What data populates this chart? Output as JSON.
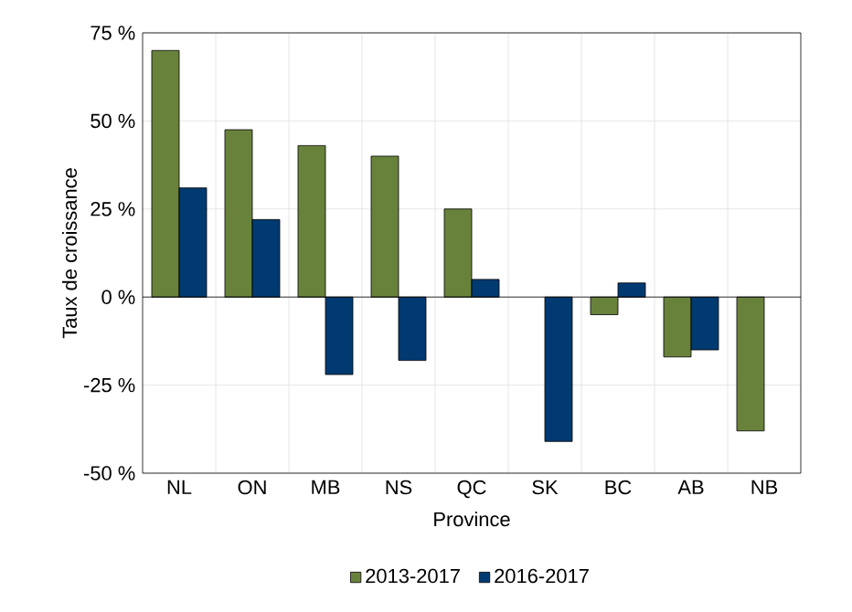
{
  "chart_data": {
    "type": "bar",
    "categories": [
      "NL",
      "ON",
      "MB",
      "NS",
      "QC",
      "SK",
      "BC",
      "AB",
      "NB"
    ],
    "series": [
      {
        "name": "2013-2017",
        "color": "#68823c",
        "values": [
          70,
          47.5,
          43,
          40,
          25,
          null,
          -5,
          -17,
          -38
        ]
      },
      {
        "name": "2016-2017",
        "color": "#003a70",
        "values": [
          31,
          22,
          -22,
          -18,
          5,
          -41,
          4,
          -15,
          null
        ]
      }
    ],
    "xlabel": "Province",
    "ylabel": "Taux de croissance",
    "ylim": [
      -50,
      75
    ],
    "yticks": [
      {
        "value": -50,
        "label": "-50 %"
      },
      {
        "value": -25,
        "label": "-25 %"
      },
      {
        "value": 0,
        "label": "0 %"
      },
      {
        "value": 25,
        "label": "25 %"
      },
      {
        "value": 50,
        "label": "50 %"
      },
      {
        "value": 75,
        "label": "75 %"
      }
    ],
    "grid": true,
    "legend": "bottom"
  }
}
